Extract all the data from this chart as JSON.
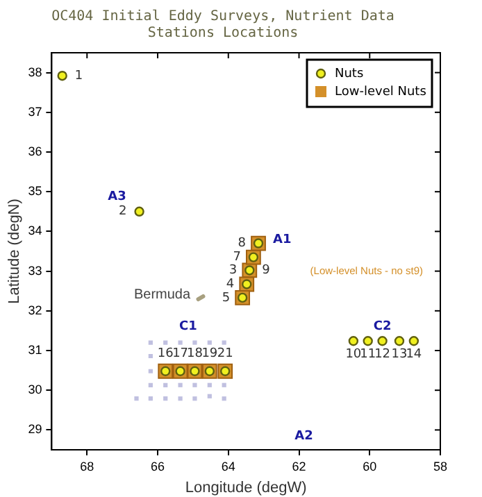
{
  "chart_data": {
    "type": "scatter",
    "title": "OC404 Initial Eddy Surveys, Nutrient Data\nStations Locations",
    "xlabel": "Longitude (degW)",
    "ylabel": "Latitude (degN)",
    "xlim": [
      69,
      58
    ],
    "xticks": [
      68,
      66,
      64,
      62,
      60,
      58
    ],
    "ylim": [
      28.5,
      38.5
    ],
    "yticks": [
      29,
      30,
      31,
      32,
      33,
      34,
      35,
      36,
      37,
      38
    ],
    "grid": false,
    "legend": "top right",
    "series": [
      {
        "color": "#c0c0e0",
        "marker": "square",
        "x": [
          66.2,
          65.78,
          65.36,
          64.95,
          64.53,
          64.12,
          66.2,
          66.2,
          66.2,
          65.78,
          65.36,
          64.95,
          64.53,
          64.12,
          66.6,
          66.2,
          65.78,
          65.36,
          64.95,
          64.53,
          64.12
        ],
        "values": [
          31.2,
          31.2,
          31.2,
          31.2,
          31.2,
          31.2,
          30.86,
          30.48,
          30.13,
          30.13,
          30.13,
          30.13,
          30.13,
          30.13,
          29.79,
          29.79,
          29.79,
          29.79,
          29.79,
          29.85,
          29.79
        ]
      },
      {
        "name": "Low-level Nuts",
        "color": "#d4902a",
        "marker": "square",
        "x": [
          63.4,
          63.48,
          63.6,
          63.29,
          63.15,
          65.78,
          65.36,
          64.95,
          64.53,
          64.09
        ],
        "values": [
          33.02,
          32.67,
          32.33,
          33.35,
          33.7,
          30.48,
          30.48,
          30.48,
          30.48,
          30.48
        ]
      },
      {
        "name": "Nuts",
        "color": "#f0f020",
        "marker": "circle",
        "x": [
          68.7,
          66.52,
          63.4,
          63.48,
          63.6,
          63.29,
          63.15,
          60.46,
          60.05,
          59.64,
          59.16,
          58.75,
          65.78,
          65.36,
          64.95,
          64.53,
          64.09
        ],
        "values": [
          37.92,
          34.5,
          33.02,
          32.67,
          32.33,
          33.35,
          33.7,
          31.24,
          31.24,
          31.24,
          31.24,
          31.24,
          30.48,
          30.48,
          30.48,
          30.48,
          30.48
        ]
      }
    ],
    "annotations": [
      "A1",
      "A2",
      "A3",
      "C1",
      "C2",
      "(Low-level Nuts - no st9)",
      {
        "text": "Bermuda",
        "x": 64.8,
        "y": 32.33
      },
      {
        "text": "1",
        "x": 68.7,
        "y": 37.92
      },
      {
        "text": "2",
        "x": 66.52,
        "y": 34.5
      },
      {
        "text": "3",
        "x": 63.4,
        "y": 33.02
      },
      {
        "text": "9",
        "x": 63.4,
        "y": 33.02
      },
      {
        "text": "4",
        "x": 63.48,
        "y": 32.67
      },
      {
        "text": "5",
        "x": 63.6,
        "y": 32.33
      },
      {
        "text": "7",
        "x": 63.29,
        "y": 33.35
      },
      {
        "text": "8",
        "x": 63.15,
        "y": 33.7
      },
      {
        "text": "10",
        "x": 60.46,
        "y": 31.24
      },
      {
        "text": "11",
        "x": 60.05,
        "y": 31.24
      },
      {
        "text": "12",
        "x": 59.64,
        "y": 31.24
      },
      {
        "text": "13",
        "x": 59.16,
        "y": 31.24
      },
      {
        "text": "14",
        "x": 58.75,
        "y": 31.24
      },
      {
        "text": "16",
        "x": 65.78,
        "y": 30.48
      },
      {
        "text": "17",
        "x": 65.36,
        "y": 30.48
      },
      {
        "text": "18",
        "x": 64.95,
        "y": 30.48
      },
      {
        "text": "19",
        "x": 64.53,
        "y": 30.48
      },
      {
        "text": "21",
        "x": 64.09,
        "y": 30.48
      }
    ]
  }
}
